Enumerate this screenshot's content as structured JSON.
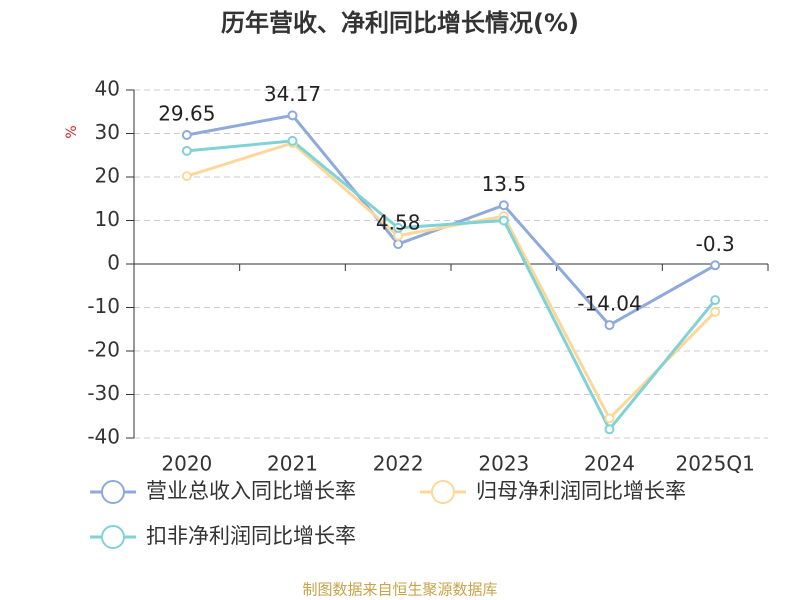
{
  "chart_data": {
    "type": "line",
    "title": "历年营收、净利同比增长情况(%)",
    "y_label": "%",
    "categories": [
      "2020",
      "2021",
      "2022",
      "2023",
      "2024",
      "2025Q1"
    ],
    "series": [
      {
        "name": "营业总收入同比增长率",
        "color": "#8eaadb",
        "values": [
          29.65,
          34.17,
          4.58,
          13.5,
          -14.04,
          -0.3
        ],
        "show_labels": true
      },
      {
        "name": "归母净利润同比增长率",
        "color": "#fbd89a",
        "values": [
          20.2,
          27.8,
          6.5,
          11,
          -35.5,
          -11
        ],
        "show_labels": false
      },
      {
        "name": "扣非净利润同比增长率",
        "color": "#7fd2d6",
        "values": [
          26,
          28.3,
          8.3,
          10,
          -38,
          -8.3
        ],
        "show_labels": false
      }
    ],
    "ylim": [
      -40,
      40
    ],
    "yticks": [
      -40,
      -30,
      -20,
      -10,
      0,
      10,
      20,
      30,
      40
    ],
    "grid": true,
    "source": "制图数据来自恒生聚源数据库"
  }
}
